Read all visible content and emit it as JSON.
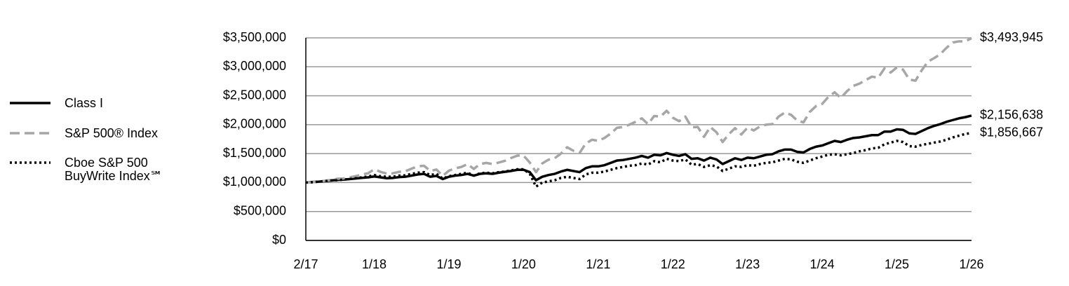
{
  "chart_data": {
    "type": "line",
    "categories": [
      "2/17",
      null,
      null,
      null,
      null,
      null,
      null,
      null,
      null,
      null,
      null,
      "1/18",
      null,
      null,
      null,
      null,
      null,
      null,
      null,
      null,
      null,
      null,
      null,
      "1/19",
      null,
      null,
      null,
      null,
      null,
      null,
      null,
      null,
      null,
      null,
      null,
      "1/20",
      null,
      null,
      null,
      null,
      null,
      null,
      null,
      null,
      null,
      null,
      null,
      "1/21",
      null,
      null,
      null,
      null,
      null,
      null,
      null,
      null,
      null,
      null,
      null,
      "1/22",
      null,
      null,
      null,
      null,
      null,
      null,
      null,
      null,
      null,
      null,
      null,
      "1/23",
      null,
      null,
      null,
      null,
      null,
      null,
      null,
      null,
      null,
      null,
      null,
      "1/24",
      null,
      null,
      null,
      null,
      null,
      null,
      null,
      null,
      null,
      null,
      null,
      "1/25",
      null,
      null,
      null,
      null,
      null,
      null,
      null,
      null,
      null,
      null,
      null,
      "1/26"
    ],
    "ylim": [
      0,
      3500000
    ],
    "yticks": [
      {
        "value": 0,
        "label": "$0"
      },
      {
        "value": 500000,
        "label": "$500,000"
      },
      {
        "value": 1000000,
        "label": "$1,000,000"
      },
      {
        "value": 1500000,
        "label": "$1,500,000"
      },
      {
        "value": 2000000,
        "label": "$2,000,000"
      },
      {
        "value": 2500000,
        "label": "$2,500,000"
      },
      {
        "value": 3000000,
        "label": "$3,000,000"
      },
      {
        "value": 3500000,
        "label": "$3,500,000"
      }
    ],
    "grid": true,
    "legend": "left",
    "series": [
      {
        "name": "Class I",
        "color": "#000000",
        "dash": "solid",
        "end_label": "$2,156,638",
        "values": [
          1000000,
          1010000,
          1015000,
          1025000,
          1035000,
          1045000,
          1050000,
          1060000,
          1070000,
          1080000,
          1090000,
          1105000,
          1090000,
          1075000,
          1080000,
          1095000,
          1100000,
          1120000,
          1140000,
          1150000,
          1100000,
          1115000,
          1060000,
          1100000,
          1120000,
          1130000,
          1150000,
          1120000,
          1150000,
          1160000,
          1150000,
          1170000,
          1185000,
          1200000,
          1220000,
          1220000,
          1180000,
          1040000,
          1100000,
          1130000,
          1150000,
          1190000,
          1220000,
          1200000,
          1180000,
          1250000,
          1280000,
          1280000,
          1300000,
          1340000,
          1380000,
          1390000,
          1410000,
          1430000,
          1460000,
          1430000,
          1480000,
          1470000,
          1510000,
          1480000,
          1460000,
          1490000,
          1410000,
          1420000,
          1380000,
          1430000,
          1400000,
          1320000,
          1370000,
          1420000,
          1390000,
          1430000,
          1420000,
          1450000,
          1480000,
          1490000,
          1540000,
          1570000,
          1570000,
          1530000,
          1520000,
          1580000,
          1620000,
          1640000,
          1680000,
          1720000,
          1700000,
          1740000,
          1770000,
          1780000,
          1800000,
          1820000,
          1820000,
          1880000,
          1880000,
          1920000,
          1910000,
          1850000,
          1840000,
          1890000,
          1940000,
          1980000,
          2010000,
          2050000,
          2080000,
          2110000,
          2130000,
          2156638
        ]
      },
      {
        "name": "S&P 500® Index",
        "color": "#a6a6a6",
        "dash": "dashed",
        "end_label": "$3,493,945",
        "values": [
          1000000,
          1005000,
          1015000,
          1030000,
          1045000,
          1065000,
          1070000,
          1090000,
          1110000,
          1140000,
          1160000,
          1230000,
          1185000,
          1155000,
          1160000,
          1185000,
          1195000,
          1240000,
          1280000,
          1290000,
          1200000,
          1225000,
          1115000,
          1205000,
          1245000,
          1270000,
          1320000,
          1235000,
          1320000,
          1340000,
          1320000,
          1345000,
          1375000,
          1425000,
          1465000,
          1465000,
          1345000,
          1180000,
          1330000,
          1395000,
          1420000,
          1500000,
          1610000,
          1550000,
          1510000,
          1675000,
          1740000,
          1720000,
          1770000,
          1845000,
          1945000,
          1960000,
          2000000,
          2050000,
          2110000,
          2010000,
          2150000,
          2140000,
          2240000,
          2120000,
          2060000,
          2140000,
          1955000,
          1960000,
          1790000,
          1960000,
          1870000,
          1700000,
          1835000,
          1940000,
          1830000,
          1950000,
          1900000,
          1970000,
          2000000,
          2010000,
          2140000,
          2210000,
          2170000,
          2070000,
          2040000,
          2220000,
          2320000,
          2360000,
          2480000,
          2560000,
          2460000,
          2580000,
          2670000,
          2710000,
          2770000,
          2830000,
          2810000,
          2970000,
          2900000,
          2990000,
          2950000,
          2780000,
          2760000,
          2940000,
          3090000,
          3150000,
          3220000,
          3330000,
          3420000,
          3440000,
          3440000,
          3493945
        ]
      },
      {
        "name": "Cboe S&P 500 BuyWrite Index℠",
        "color": "#000000",
        "dash": "dotted",
        "end_label": "$1,856,667",
        "values": [
          1000000,
          1005000,
          1015000,
          1025000,
          1035000,
          1040000,
          1050000,
          1060000,
          1075000,
          1090000,
          1105000,
          1130000,
          1110000,
          1100000,
          1100000,
          1120000,
          1125000,
          1150000,
          1170000,
          1180000,
          1130000,
          1150000,
          1070000,
          1110000,
          1130000,
          1150000,
          1170000,
          1120000,
          1160000,
          1170000,
          1160000,
          1180000,
          1190000,
          1210000,
          1230000,
          1230000,
          1150000,
          930000,
          1000000,
          1020000,
          1040000,
          1080000,
          1100000,
          1080000,
          1060000,
          1140000,
          1170000,
          1170000,
          1190000,
          1220000,
          1250000,
          1270000,
          1290000,
          1300000,
          1330000,
          1310000,
          1370000,
          1350000,
          1410000,
          1380000,
          1370000,
          1400000,
          1310000,
          1320000,
          1270000,
          1300000,
          1280000,
          1200000,
          1240000,
          1280000,
          1270000,
          1300000,
          1290000,
          1320000,
          1340000,
          1350000,
          1380000,
          1410000,
          1400000,
          1360000,
          1340000,
          1380000,
          1420000,
          1450000,
          1480000,
          1490000,
          1470000,
          1490000,
          1510000,
          1540000,
          1560000,
          1590000,
          1600000,
          1660000,
          1690000,
          1720000,
          1700000,
          1630000,
          1620000,
          1650000,
          1670000,
          1690000,
          1710000,
          1740000,
          1780000,
          1810000,
          1840000,
          1856667
        ]
      }
    ]
  }
}
